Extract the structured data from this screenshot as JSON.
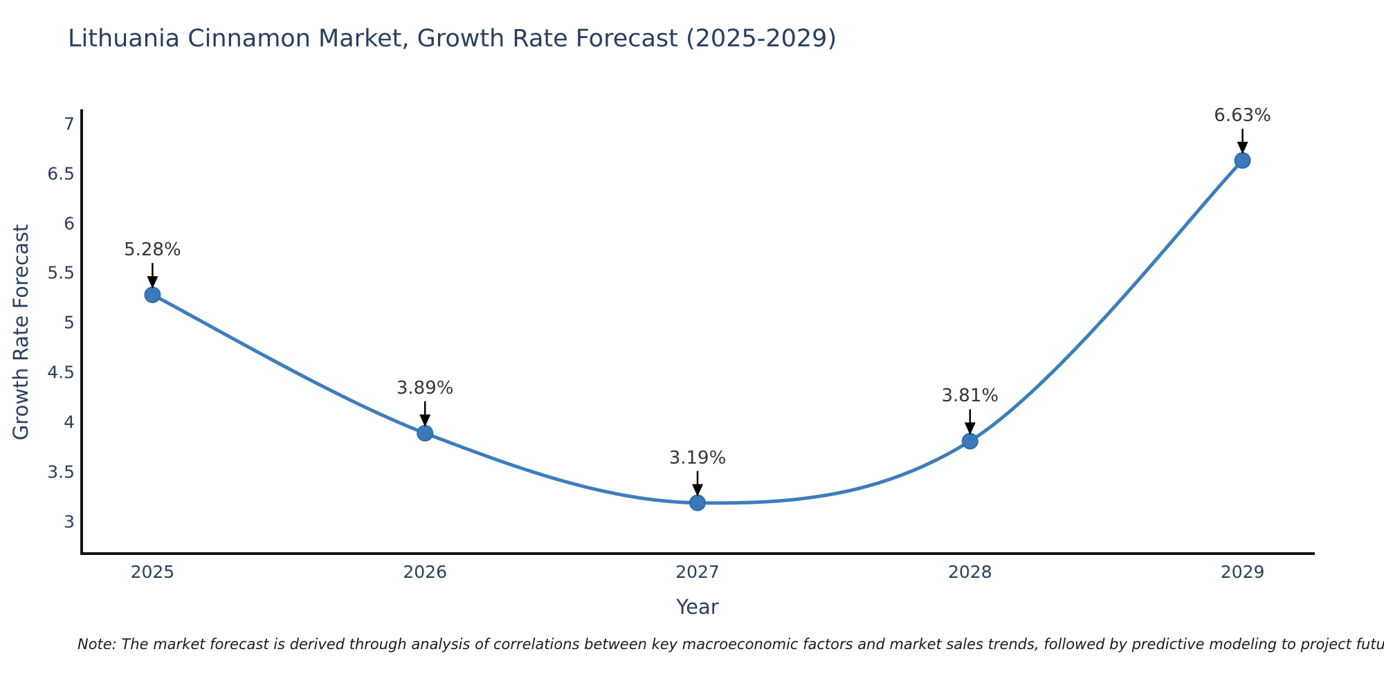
{
  "chart_data": {
    "type": "line",
    "title": "Lithuania Cinnamon Market, Growth Rate Forecast (2025-2029)",
    "xlabel": "Year",
    "ylabel": "Growth Rate Forecast",
    "x": [
      2025,
      2026,
      2027,
      2028,
      2029
    ],
    "series": [
      {
        "name": "Growth Rate Forecast",
        "values": [
          5.28,
          3.89,
          3.19,
          3.81,
          6.63
        ]
      }
    ],
    "point_labels": [
      "5.28%",
      "3.89%",
      "3.19%",
      "3.81%",
      "6.63%"
    ],
    "xtick_labels": [
      "2025",
      "2026",
      "2027",
      "2028",
      "2029"
    ],
    "ytick_labels": [
      "3",
      "3.5",
      "4",
      "4.5",
      "5",
      "5.5",
      "6",
      "6.5",
      "7"
    ],
    "ytick_values": [
      3,
      3.5,
      4,
      4.5,
      5,
      5.5,
      6,
      6.5,
      7
    ],
    "xlim": [
      2024.74,
      2029.26
    ],
    "ylim": [
      2.68,
      7.13
    ],
    "grid": false,
    "legend_position": "none",
    "line_color": "#3d7dbc",
    "marker_color": "#3a7abc",
    "marker_edge_color": "#2e6ca8",
    "annotation_arrow_color": "#000000",
    "axis_line_color": "#111111",
    "title_color": "#2a3f5f",
    "tick_color": "#2a3f5f",
    "annotation_text_color": "#353535"
  },
  "footnote": "Note: The market forecast is derived through analysis of correlations between key macroeconomic factors and market sales trends, followed by predictive modeling to project future sales"
}
